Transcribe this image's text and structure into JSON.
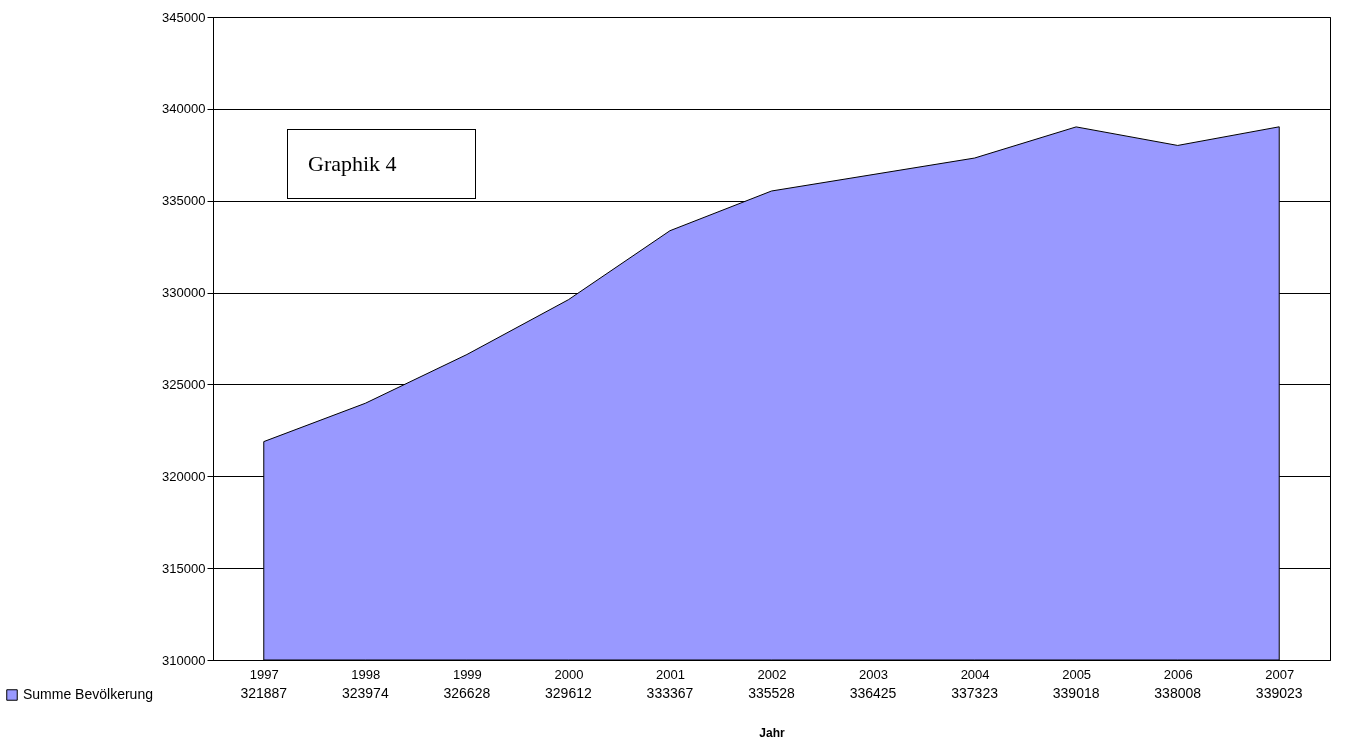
{
  "chart_data": {
    "type": "area",
    "xlabel": "Jahr",
    "annotations": [
      "Graphik 4"
    ],
    "categories": [
      "1997",
      "1998",
      "1999",
      "2000",
      "2001",
      "2002",
      "2003",
      "2004",
      "2005",
      "2006",
      "2007"
    ],
    "series": [
      {
        "name": "Summe Bevölkerung",
        "color": "#9999ff",
        "values": [
          321887,
          323974,
          326628,
          329612,
          333367,
          335528,
          336425,
          337323,
          339018,
          338008,
          339023
        ]
      }
    ],
    "ylim": [
      310000,
      345000
    ],
    "yticks": [
      310000,
      315000,
      320000,
      325000,
      330000,
      335000,
      340000,
      345000
    ],
    "grid": "y",
    "legend": "bottom left",
    "data_labels": true
  }
}
